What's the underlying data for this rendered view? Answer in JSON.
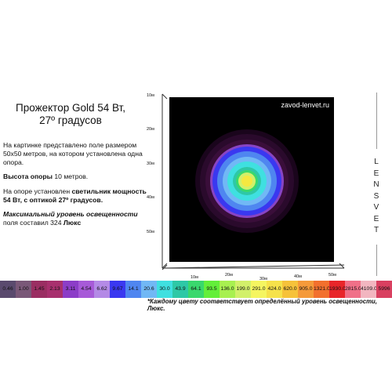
{
  "title_line1": "Прожектор Gold 54 Вт,",
  "title_line2": "27º градусов",
  "desc1_text": "На картинке представлено  поле размером 50х50 метров, на котором установлена  одна опора.",
  "desc2_bold": "Высота опоры",
  "desc2_text": " 10 метров.",
  "desc3_text": "На опоре установлен ",
  "desc3_bold": "светильник мощность 54 Вт, с оптикой 27º градусов.",
  "desc4_italic_bold": "Максимальный уровень освещенности",
  "desc4_text": " поля  составил 324 ",
  "desc4_bold_end": "Люкс",
  "site": "zavod-lenvet.ru",
  "brand_letters": [
    "L",
    "E",
    "N",
    "S",
    "V",
    "E",
    "T"
  ],
  "y_ticks": [
    "10м",
    "20м",
    "30м",
    "40м",
    "50м"
  ],
  "x_ticks": [
    "10м",
    "20м",
    "30м",
    "40м",
    "50м"
  ],
  "scale": [
    {
      "label": "0.46",
      "color": "#5a4a6e"
    },
    {
      "label": "1.00",
      "color": "#7a5878"
    },
    {
      "label": "1.45",
      "color": "#9a2e62"
    },
    {
      "label": "2.13",
      "color": "#a8306e"
    },
    {
      "label": "3.11",
      "color": "#8c3dc8"
    },
    {
      "label": "4.54",
      "color": "#a75ad8"
    },
    {
      "label": "6.62",
      "color": "#b48ae6"
    },
    {
      "label": "9.67",
      "color": "#3a38f0"
    },
    {
      "label": "14.1",
      "color": "#4f86f0"
    },
    {
      "label": "20.6",
      "color": "#71b8f5"
    },
    {
      "label": "30.0",
      "color": "#3fe0e0"
    },
    {
      "label": "43.9",
      "color": "#2ec8a6"
    },
    {
      "label": "64.1",
      "color": "#39d86d"
    },
    {
      "label": "93.5",
      "color": "#63ef3a"
    },
    {
      "label": "136.0",
      "color": "#a8f050"
    },
    {
      "label": "199.0",
      "color": "#d2f06a"
    },
    {
      "label": "291.0",
      "color": "#f5f560"
    },
    {
      "label": "424.0",
      "color": "#f6e24a"
    },
    {
      "label": "620.0",
      "color": "#f6c23a"
    },
    {
      "label": "905.0",
      "color": "#f59a3a"
    },
    {
      "label": "1321.0",
      "color": "#f2702e"
    },
    {
      "label": "1930.0",
      "color": "#e8262a"
    },
    {
      "label": "2815.0",
      "color": "#f07088"
    },
    {
      "label": "4109.0",
      "color": "#f2b6c0"
    },
    {
      "label": "5996",
      "color": "#d94060"
    }
  ],
  "note": "*Каждому цвету соответствует  определённый уровень освещенности, Люкс."
}
